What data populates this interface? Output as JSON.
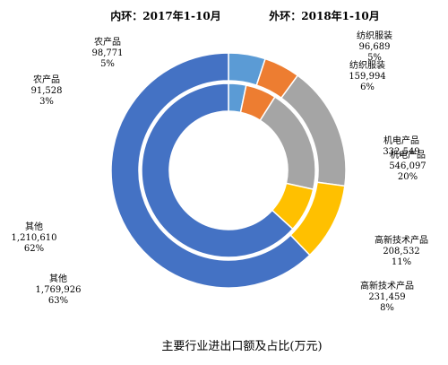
{
  "chart_data": {
    "type": "pie",
    "title": "主要行业进出口额及占比(万元)",
    "headers": {
      "inner": "内环：2017年1-10月",
      "outer": "外环：2018年1-10月"
    },
    "categories": [
      "农产品",
      "纺织服装",
      "机电产品",
      "高新技术产品",
      "其他"
    ],
    "colors": [
      "#5B9BD5",
      "#ED7D31",
      "#A5A5A5",
      "#FFC000",
      "#4472C4"
    ],
    "series": [
      {
        "name": "内环：2017年1-10月",
        "ring": "inner",
        "values": [
          91528,
          159994,
          546097,
          231459,
          1769926
        ],
        "value_labels": [
          "91,528",
          "159,994",
          "546,097",
          "231,459",
          "1,769,926"
        ],
        "percent_labels": [
          "3%",
          "6%",
          "20%",
          "8%",
          "63%"
        ]
      },
      {
        "name": "外环：2018年1-10月",
        "ring": "outer",
        "values": [
          98771,
          96689,
          332549,
          208532,
          1210610
        ],
        "value_labels": [
          "98,771",
          "96,689",
          "332,549",
          "208,532",
          "1,210,610"
        ],
        "percent_labels": [
          "5%",
          "5%",
          "",
          "11%",
          "62%"
        ]
      }
    ]
  }
}
